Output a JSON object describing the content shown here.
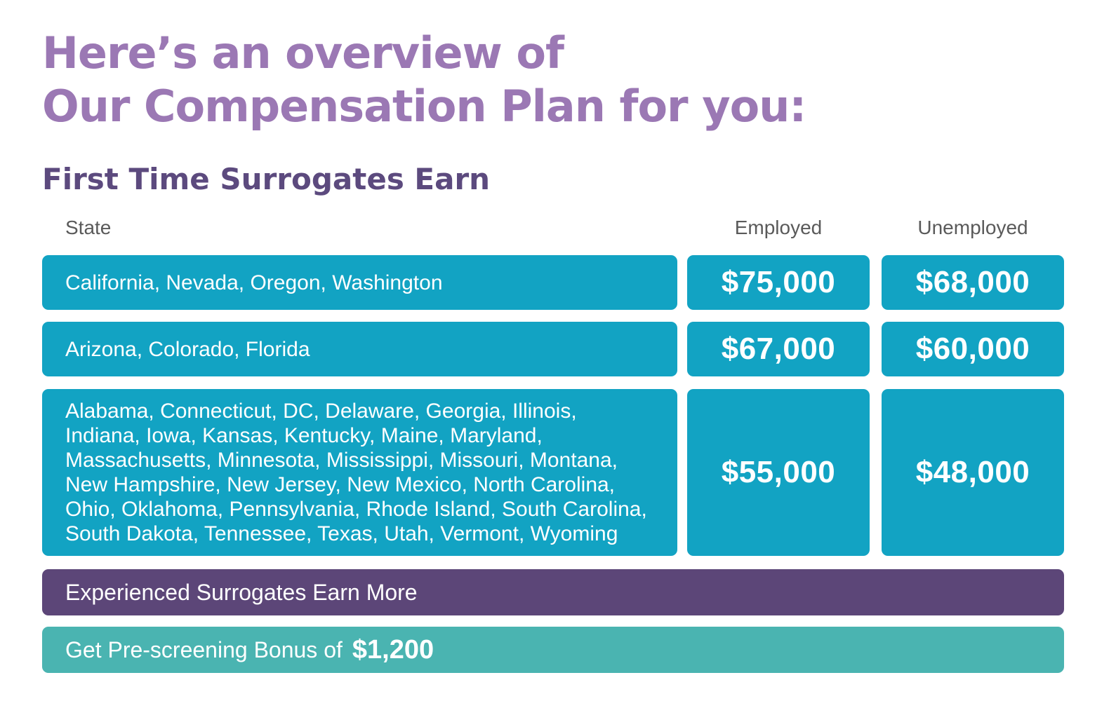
{
  "headline": {
    "line1": "Here’s an overview of",
    "line2": "Our Compensation Plan for you:"
  },
  "subheading": "First Time Surrogates Earn",
  "table": {
    "columns": [
      "State",
      "Employed",
      "Unemployed"
    ],
    "rows": [
      {
        "states": "California, Nevada, Oregon, Washington",
        "employed": "$75,000",
        "unemployed": "$68,000"
      },
      {
        "states": "Arizona, Colorado, Florida",
        "employed": "$67,000",
        "unemployed": "$60,000"
      },
      {
        "states": "Alabama, Connecticut, DC, Delaware, Georgia, Illinois, Indiana, Iowa, Kansas, Kentucky, Maine, Maryland, Massachusetts, Minnesota, Mississippi, Missouri, Montana, New Hampshire, New Jersey, New Mexico, North Carolina, Ohio, Oklahoma, Pennsylvania, Rhode Island, South Carolina, South Dakota, Tennessee, Texas, Utah, Vermont, Wyoming",
        "employed": "$55,000",
        "unemployed": "$48,000"
      }
    ]
  },
  "experienced_banner": "Experienced Surrogates Earn More",
  "bonus_banner": {
    "label": "Get Pre-screening Bonus of",
    "amount": "$1,200"
  },
  "colors": {
    "headline": "#9b78b4",
    "subheading": "#5c4a7e",
    "row_box": "#12a3c3",
    "experienced_banner": "#5c4678",
    "bonus_banner": "#4ab4b1"
  }
}
